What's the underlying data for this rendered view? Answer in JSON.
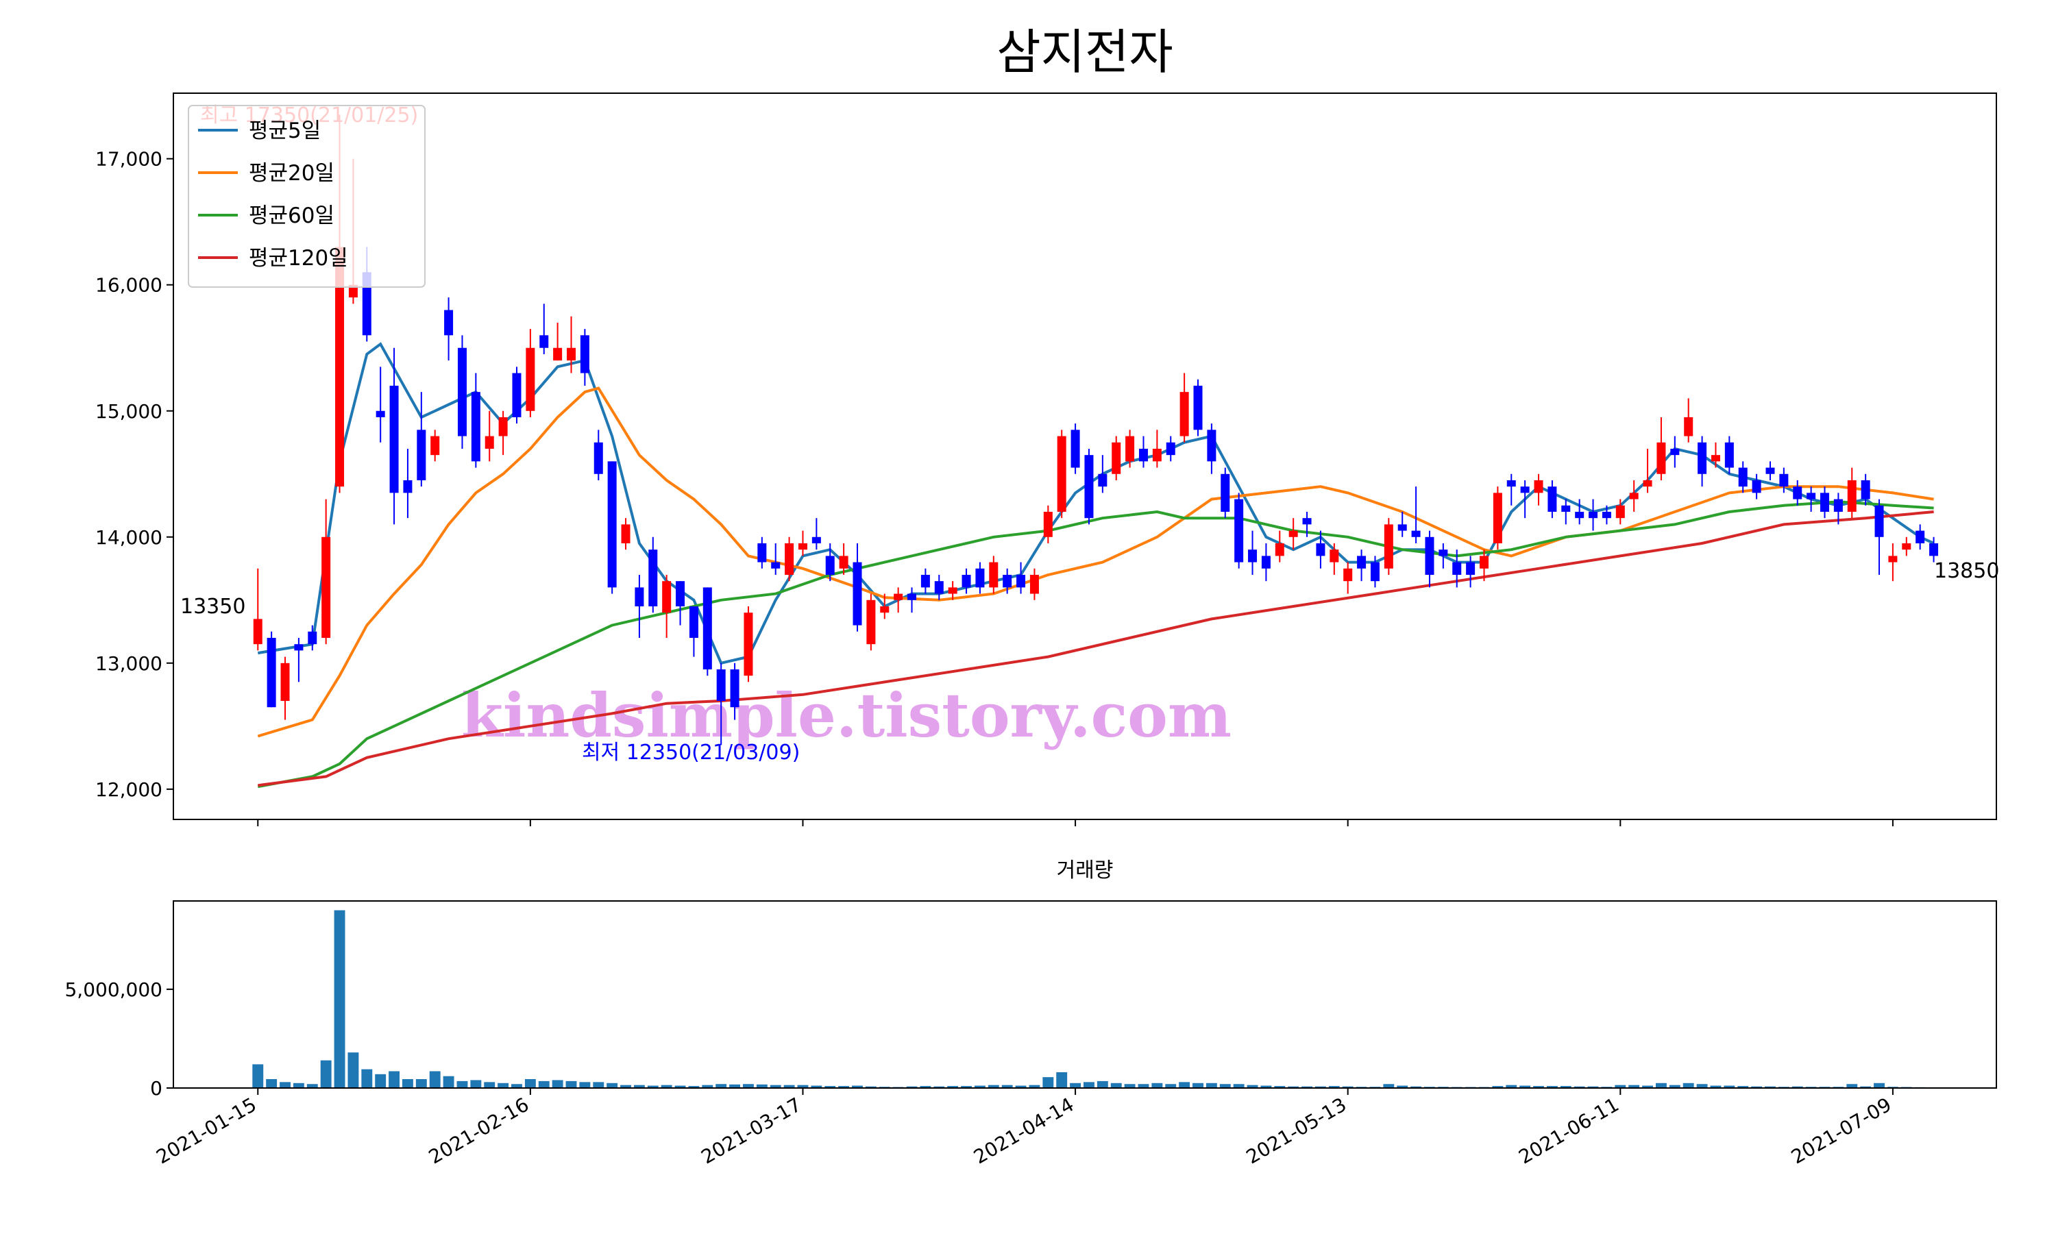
{
  "chart_data": [
    {
      "type": "candlestick",
      "title": "삼지전자",
      "open": [
        13150,
        13200,
        12700,
        13150,
        13250,
        13200,
        14400,
        15900,
        16100,
        15000,
        15200,
        14450,
        14850,
        14650,
        15800,
        15500,
        15150,
        14700,
        14800,
        15300,
        15000,
        15600,
        15400,
        15400,
        15600,
        14750,
        14600,
        13950,
        13600,
        13900,
        13400,
        13650,
        13450,
        13600,
        12950,
        12950,
        12900,
        13950,
        13800,
        13700,
        13900,
        14000,
        13850,
        13750,
        13800,
        13150,
        13400,
        13500,
        13550,
        13700,
        13650,
        13550,
        13700,
        13750,
        13600,
        13700,
        13700,
        13550,
        14000,
        14200,
        14850,
        14650,
        14500,
        14500,
        14600,
        14700,
        14600,
        14750,
        14800,
        15200,
        14850,
        14500,
        14300,
        13900,
        13850,
        13850,
        14000,
        14150,
        13950,
        13800,
        13650,
        13850,
        13800,
        13750,
        14100,
        14050,
        14000,
        13900,
        13800,
        13800,
        13750,
        13950,
        14450,
        14400,
        14350,
        14400,
        14250,
        14200,
        14200,
        14200,
        14150,
        14300,
        14400,
        14500,
        14700,
        14800,
        14750,
        14600,
        14750,
        14550,
        14450,
        14550,
        14500,
        14400,
        14350,
        14350,
        14300,
        14200,
        14450,
        14250,
        13800,
        13900,
        14050,
        13950
      ],
      "high": [
        13750,
        13250,
        13050,
        13200,
        13300,
        14300,
        17350,
        17000,
        16300,
        15350,
        15500,
        14700,
        15150,
        14850,
        15900,
        15600,
        15300,
        15000,
        15000,
        15350,
        15650,
        15850,
        15700,
        15750,
        15650,
        14850,
        14600,
        14150,
        13700,
        14000,
        13700,
        13650,
        13450,
        13600,
        13000,
        13000,
        13450,
        14000,
        13950,
        14000,
        14050,
        14150,
        13950,
        13950,
        13950,
        13550,
        13550,
        13600,
        13600,
        13750,
        13700,
        13650,
        13750,
        13800,
        13850,
        13750,
        13800,
        13750,
        14250,
        14850,
        14900,
        14700,
        14650,
        14800,
        14850,
        14800,
        14850,
        14800,
        15300,
        15250,
        14900,
        14550,
        14350,
        14050,
        13950,
        14050,
        14150,
        14200,
        14050,
        13950,
        13800,
        13900,
        13850,
        14150,
        14200,
        14400,
        14050,
        13950,
        13900,
        13850,
        13900,
        14400,
        14500,
        14450,
        14500,
        14450,
        14300,
        14300,
        14300,
        14250,
        14300,
        14450,
        14700,
        14950,
        14800,
        15100,
        14800,
        14750,
        14800,
        14600,
        14500,
        14600,
        14550,
        14450,
        14400,
        14400,
        14350,
        14550,
        14500,
        14300,
        13950,
        14000,
        14100,
        14000
      ],
      "low": [
        13100,
        12650,
        12550,
        12850,
        13100,
        13150,
        14350,
        15850,
        15550,
        14750,
        14100,
        14150,
        14400,
        14600,
        15400,
        14700,
        14550,
        14600,
        14650,
        14900,
        14950,
        15450,
        15400,
        15300,
        15200,
        14450,
        13550,
        13900,
        13200,
        13400,
        13200,
        13300,
        13050,
        12900,
        12350,
        12550,
        12850,
        13750,
        13700,
        13650,
        13850,
        13900,
        13650,
        13700,
        13250,
        13100,
        13350,
        13400,
        13400,
        13550,
        13500,
        13500,
        13550,
        13550,
        13550,
        13550,
        13550,
        13500,
        13950,
        14150,
        14500,
        14100,
        14350,
        14450,
        14550,
        14550,
        14550,
        14600,
        14750,
        14800,
        14500,
        14150,
        13750,
        13700,
        13650,
        13800,
        13900,
        14000,
        13750,
        13700,
        13550,
        13650,
        13600,
        13700,
        14000,
        13950,
        13600,
        13750,
        13600,
        13600,
        13650,
        13900,
        14250,
        14150,
        14250,
        14150,
        14100,
        14100,
        14050,
        14100,
        14100,
        14200,
        14350,
        14450,
        14550,
        14750,
        14400,
        14550,
        14500,
        14350,
        14300,
        14450,
        14350,
        14250,
        14200,
        14150,
        14100,
        14150,
        14250,
        13700,
        13650,
        13850,
        13900,
        13800
      ],
      "close": [
        13350,
        12650,
        13000,
        13100,
        13150,
        14000,
        16300,
        16000,
        15600,
        14950,
        14350,
        14350,
        14450,
        14800,
        15600,
        14800,
        14600,
        14800,
        14950,
        14950,
        15500,
        15500,
        15500,
        15500,
        15300,
        14500,
        13600,
        14100,
        13450,
        13450,
        13650,
        13450,
        13200,
        12950,
        12700,
        12650,
        13400,
        13800,
        13750,
        13950,
        13950,
        13950,
        13700,
        13850,
        13300,
        13500,
        13450,
        13550,
        13500,
        13600,
        13550,
        13600,
        13600,
        13600,
        13800,
        13600,
        13600,
        13700,
        14200,
        14800,
        14550,
        14150,
        14400,
        14750,
        14800,
        14600,
        14700,
        14650,
        15150,
        14850,
        14600,
        14200,
        13800,
        13800,
        13750,
        13950,
        14050,
        14100,
        13850,
        13900,
        13750,
        13750,
        13650,
        14100,
        14050,
        14000,
        13700,
        13850,
        13700,
        13700,
        13850,
        14350,
        14400,
        14350,
        14450,
        14200,
        14200,
        14150,
        14150,
        14150,
        14250,
        14350,
        14450,
        14750,
        14650,
        14950,
        14500,
        14650,
        14550,
        14400,
        14350,
        14500,
        14400,
        14300,
        14300,
        14200,
        14200,
        14450,
        14300,
        14000,
        13850,
        13950,
        13950,
        13850
      ],
      "up_color": "red",
      "down_color": "blue",
      "xlim": [
        -6.2,
        127.6
      ],
      "ylim": [
        11760,
        17520
      ],
      "yticks": [
        {
          "value": 12000,
          "label": "12,000"
        },
        {
          "value": 13000,
          "label": "13,000"
        },
        {
          "value": 14000,
          "label": "14,000"
        },
        {
          "value": 15000,
          "label": "15,000"
        },
        {
          "value": 16000,
          "label": "16,000"
        },
        {
          "value": 17000,
          "label": "17,000"
        }
      ],
      "legend": "upper left",
      "series": [
        {
          "name": "평균5일",
          "color": "#1f77b4",
          "x": [
            0,
            4,
            6,
            8,
            9,
            12,
            14,
            16,
            18,
            20,
            22,
            24,
            26,
            28,
            30,
            32,
            34,
            36,
            38,
            40,
            42,
            44,
            46,
            48,
            50,
            52,
            54,
            56,
            58,
            60,
            62,
            64,
            66,
            68,
            70,
            72,
            74,
            76,
            78,
            80,
            82,
            84,
            86,
            88,
            90,
            92,
            94,
            96,
            98,
            100,
            102,
            104,
            106,
            108,
            110,
            112,
            114,
            116,
            118,
            120,
            122,
            123
          ],
          "values": [
            13080,
            13150,
            14600,
            15450,
            15530,
            14950,
            15050,
            15150,
            14900,
            15100,
            15350,
            15400,
            14800,
            13950,
            13650,
            13500,
            13000,
            13050,
            13500,
            13850,
            13900,
            13700,
            13450,
            13550,
            13550,
            13600,
            13650,
            13700,
            14050,
            14350,
            14500,
            14600,
            14650,
            14750,
            14800,
            14400,
            14000,
            13900,
            14000,
            13800,
            13800,
            13900,
            13900,
            13800,
            13800,
            14200,
            14400,
            14300,
            14200,
            14250,
            14450,
            14700,
            14650,
            14500,
            14450,
            14400,
            14300,
            14250,
            14300,
            14150,
            14000,
            13950
          ]
        },
        {
          "name": "평균20일",
          "color": "#ff7f0e",
          "x": [
            0,
            4,
            6,
            8,
            10,
            12,
            14,
            16,
            18,
            20,
            22,
            24,
            25,
            28,
            30,
            32,
            34,
            36,
            40,
            44,
            46,
            50,
            54,
            58,
            62,
            64,
            66,
            68,
            70,
            74,
            78,
            80,
            84,
            88,
            90,
            92,
            96,
            100,
            104,
            108,
            112,
            116,
            120,
            123
          ],
          "values": [
            12420,
            12550,
            12900,
            13300,
            13550,
            13780,
            14100,
            14350,
            14500,
            14700,
            14950,
            15150,
            15180,
            14650,
            14450,
            14300,
            14100,
            13850,
            13750,
            13600,
            13520,
            13500,
            13550,
            13700,
            13800,
            13900,
            14000,
            14150,
            14300,
            14350,
            14400,
            14350,
            14200,
            14000,
            13900,
            13850,
            14000,
            14050,
            14200,
            14350,
            14400,
            14400,
            14350,
            14300
          ]
        },
        {
          "name": "평균60일",
          "color": "#2ca02c",
          "x": [
            0,
            4,
            6,
            8,
            10,
            14,
            18,
            22,
            26,
            30,
            34,
            38,
            42,
            46,
            50,
            54,
            58,
            62,
            66,
            68,
            72,
            76,
            80,
            84,
            88,
            92,
            96,
            100,
            104,
            108,
            112,
            116,
            120,
            123
          ],
          "values": [
            12020,
            12100,
            12200,
            12400,
            12500,
            12700,
            12900,
            13100,
            13300,
            13400,
            13500,
            13550,
            13700,
            13800,
            13900,
            14000,
            14050,
            14150,
            14200,
            14150,
            14150,
            14050,
            14000,
            13900,
            13850,
            13900,
            14000,
            14050,
            14100,
            14200,
            14250,
            14280,
            14250,
            14230
          ]
        },
        {
          "name": "평균120일",
          "color": "#d62728",
          "x": [
            0,
            5,
            8,
            14,
            20,
            26,
            30,
            34,
            40,
            46,
            52,
            58,
            64,
            70,
            76,
            82,
            88,
            94,
            100,
            106,
            112,
            118,
            123
          ],
          "values": [
            12030,
            12100,
            12250,
            12400,
            12500,
            12600,
            12680,
            12700,
            12750,
            12850,
            12950,
            13050,
            13200,
            13350,
            13450,
            13550,
            13650,
            13750,
            13850,
            13950,
            14100,
            14150,
            14200
          ]
        }
      ],
      "annotations": [
        {
          "text": "최고 17350(21/01/25)",
          "color": "red"
        },
        {
          "text": "최저 12350(21/03/09)",
          "color": "blue"
        },
        {
          "text": "13350",
          "color": "black"
        },
        {
          "text": "13850",
          "color": "black"
        }
      ],
      "watermark": "kindsimple.tistory.com",
      "watermark_color": "#e3a2ec"
    },
    {
      "type": "bar",
      "title": "거래량",
      "color": "#1f77b4",
      "values": [
        1200000,
        450000,
        300000,
        250000,
        200000,
        1400000,
        9000000,
        1800000,
        950000,
        700000,
        850000,
        450000,
        450000,
        850000,
        600000,
        350000,
        400000,
        300000,
        250000,
        200000,
        450000,
        350000,
        400000,
        350000,
        300000,
        300000,
        250000,
        150000,
        150000,
        120000,
        150000,
        120000,
        100000,
        150000,
        200000,
        180000,
        200000,
        180000,
        150000,
        150000,
        150000,
        120000,
        100000,
        100000,
        120000,
        80000,
        60000,
        50000,
        80000,
        100000,
        80000,
        100000,
        100000,
        120000,
        150000,
        150000,
        120000,
        150000,
        550000,
        800000,
        250000,
        300000,
        350000,
        250000,
        200000,
        200000,
        250000,
        200000,
        300000,
        250000,
        250000,
        200000,
        200000,
        150000,
        120000,
        100000,
        80000,
        80000,
        80000,
        100000,
        80000,
        60000,
        60000,
        200000,
        120000,
        80000,
        60000,
        60000,
        50000,
        50000,
        50000,
        100000,
        150000,
        120000,
        100000,
        100000,
        100000,
        80000,
        80000,
        60000,
        150000,
        150000,
        120000,
        250000,
        150000,
        250000,
        200000,
        120000,
        120000,
        100000,
        80000,
        80000,
        60000,
        80000,
        60000,
        60000,
        60000,
        200000,
        80000,
        250000,
        60000,
        50000,
        40000,
        30000
      ],
      "xlim": [
        -6.2,
        127.6
      ],
      "ylim": [
        0,
        9470000
      ],
      "yticks": [
        0,
        {
          "value": 5000000,
          "label": "5,000,000"
        }
      ],
      "xticks": [
        {
          "value": 0,
          "label": "2021-01-15"
        },
        {
          "value": 20,
          "label": "2021-02-16"
        },
        {
          "value": 40,
          "label": "2021-03-17"
        },
        {
          "value": 60,
          "label": "2021-04-14"
        },
        {
          "value": 80,
          "label": "2021-05-13"
        },
        {
          "value": 100,
          "label": "2021-06-11"
        },
        {
          "value": 120,
          "label": "2021-07-09"
        }
      ]
    }
  ]
}
